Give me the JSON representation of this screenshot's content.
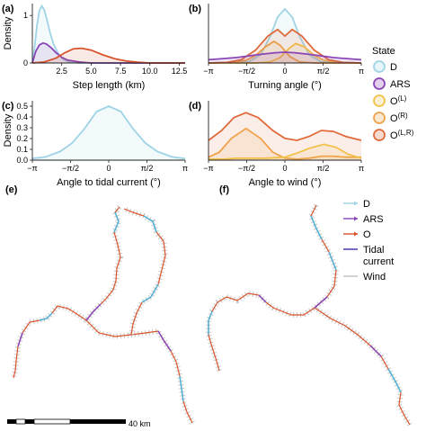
{
  "colors": {
    "D": "#9fd3e6",
    "ARS": "#8a45b8",
    "OL": "#f2c14a",
    "OR": "#f0a24b",
    "OLR": "#e06a3b",
    "O": "#d9532c",
    "tidal": "#3a2da8",
    "wind": "#b5b5b5"
  },
  "state_legend": {
    "title": "State",
    "items": [
      {
        "key": "D",
        "label": "D",
        "sup": ""
      },
      {
        "key": "ARS",
        "label": "ARS",
        "sup": ""
      },
      {
        "key": "OL",
        "label": "O",
        "sup": "(L)"
      },
      {
        "key": "OR",
        "label": "O",
        "sup": "(R)"
      },
      {
        "key": "OLR",
        "label": "O",
        "sup": "(L,R)"
      }
    ]
  },
  "track_legend": {
    "items": [
      {
        "key": "D",
        "label": "D"
      },
      {
        "key": "ARS",
        "label": "ARS"
      },
      {
        "key": "O",
        "label": "O"
      },
      {
        "key": "tidal",
        "label": "Tidal current"
      },
      {
        "key": "wind",
        "label": "Wind"
      }
    ]
  },
  "scalebar": {
    "label": "40 km"
  },
  "chart_data": [
    {
      "id": "a",
      "panel_label": "(a)",
      "type": "area",
      "xlabel": "Step length (km)",
      "ylabel": "Density",
      "xlim": [
        0,
        13
      ],
      "ylim": [
        0,
        1.25
      ],
      "xticks": [
        {
          "v": 2.5,
          "t": "2.5"
        },
        {
          "v": 5,
          "t": "5.0"
        },
        {
          "v": 7.5,
          "t": "7.5"
        },
        {
          "v": 10,
          "t": "10.0"
        },
        {
          "v": 12.5,
          "t": "12.5"
        }
      ],
      "yticks": [
        {
          "v": 0,
          "t": "0"
        },
        {
          "v": 1,
          "t": "1"
        }
      ],
      "series": [
        {
          "key": "D",
          "x": [
            0,
            0.2,
            0.4,
            0.6,
            0.8,
            1.0,
            1.2,
            1.5,
            1.8,
            2.2,
            2.6,
            3.0,
            4.0,
            13
          ],
          "y": [
            0,
            0.35,
            0.8,
            1.1,
            1.2,
            1.12,
            0.95,
            0.65,
            0.4,
            0.2,
            0.08,
            0.03,
            0,
            0
          ]
        },
        {
          "key": "ARS",
          "x": [
            0,
            0.3,
            0.6,
            0.9,
            1.2,
            1.6,
            2.0,
            2.5,
            3.0,
            4.0,
            5.0,
            13
          ],
          "y": [
            0,
            0.25,
            0.38,
            0.42,
            0.4,
            0.32,
            0.22,
            0.12,
            0.06,
            0.02,
            0,
            0
          ]
        },
        {
          "key": "O",
          "x": [
            0,
            1.0,
            2.0,
            2.8,
            3.5,
            4.2,
            5.0,
            6.0,
            7.0,
            8.0,
            9.0,
            10.0,
            13
          ],
          "y": [
            0,
            0.02,
            0.1,
            0.22,
            0.3,
            0.31,
            0.27,
            0.17,
            0.09,
            0.04,
            0.015,
            0,
            0
          ]
        }
      ]
    },
    {
      "id": "b",
      "panel_label": "(b)",
      "type": "area",
      "xlabel": "Turning angle (°)",
      "ylabel": "",
      "xlim": [
        -3.1416,
        3.1416
      ],
      "ylim": [
        0,
        1.1
      ],
      "xticks": [
        {
          "v": -3.1416,
          "t": "−π"
        },
        {
          "v": -1.5708,
          "t": "−π/2"
        },
        {
          "v": 0,
          "t": "0"
        },
        {
          "v": 1.5708,
          "t": "π/2"
        },
        {
          "v": 3.1416,
          "t": "π"
        }
      ],
      "yticks": [],
      "series": [
        {
          "key": "D",
          "x": [
            -3.14,
            -1.5,
            -1.0,
            -0.6,
            -0.3,
            0,
            0.3,
            0.6,
            1.0,
            1.5,
            3.14
          ],
          "y": [
            0,
            0.02,
            0.15,
            0.5,
            0.85,
            1.0,
            0.85,
            0.5,
            0.15,
            0.02,
            0
          ]
        },
        {
          "key": "OL",
          "x": [
            -3.14,
            -1.2,
            -0.6,
            -0.2,
            0.2,
            0.45,
            0.8,
            1.2,
            1.6,
            2.2,
            3.14
          ],
          "y": [
            0,
            0,
            0.02,
            0.1,
            0.28,
            0.36,
            0.3,
            0.14,
            0.05,
            0.01,
            0
          ]
        },
        {
          "key": "OR",
          "x": [
            -3.14,
            -2.2,
            -1.6,
            -1.2,
            -0.8,
            -0.45,
            -0.2,
            0.2,
            0.6,
            1.2,
            3.14
          ],
          "y": [
            0,
            0.01,
            0.05,
            0.14,
            0.3,
            0.4,
            0.33,
            0.12,
            0.02,
            0,
            0
          ]
        },
        {
          "key": "OLR",
          "x": [
            -3.14,
            -2.4,
            -1.8,
            -1.2,
            -0.7,
            -0.3,
            0,
            0.3,
            0.7,
            1.2,
            1.8,
            2.4,
            3.14
          ],
          "y": [
            0,
            0.01,
            0.06,
            0.24,
            0.5,
            0.62,
            0.5,
            0.62,
            0.5,
            0.24,
            0.06,
            0.01,
            0
          ]
        },
        {
          "key": "ARS",
          "x": [
            -3.14,
            -2.0,
            -1.0,
            -0.4,
            0,
            0.4,
            1.0,
            2.0,
            3.14
          ],
          "y": [
            0.06,
            0.1,
            0.16,
            0.19,
            0.2,
            0.19,
            0.16,
            0.1,
            0.06
          ]
        }
      ]
    },
    {
      "id": "c",
      "panel_label": "(c)",
      "type": "area",
      "xlabel": "Angle to tidal current (°)",
      "ylabel": "Density",
      "xlim": [
        -3.1416,
        3.1416
      ],
      "ylim": [
        0,
        0.55
      ],
      "xticks": [
        {
          "v": -3.1416,
          "t": "−π"
        },
        {
          "v": -1.5708,
          "t": "−π/2"
        },
        {
          "v": 0,
          "t": "0"
        },
        {
          "v": 1.5708,
          "t": "π/2"
        },
        {
          "v": 3.1416,
          "t": "π"
        }
      ],
      "yticks": [
        {
          "v": 0,
          "t": "0.0"
        },
        {
          "v": 0.1,
          "t": "0.1"
        },
        {
          "v": 0.2,
          "t": "0.2"
        },
        {
          "v": 0.3,
          "t": "0.3"
        },
        {
          "v": 0.4,
          "t": "0.4"
        },
        {
          "v": 0.5,
          "t": "0.5"
        }
      ],
      "series": [
        {
          "key": "D",
          "x": [
            -3.14,
            -2.6,
            -2.0,
            -1.5,
            -1.0,
            -0.5,
            0,
            0.5,
            1.0,
            1.5,
            2.0,
            2.6,
            3.14
          ],
          "y": [
            0.015,
            0.03,
            0.08,
            0.16,
            0.29,
            0.45,
            0.5,
            0.45,
            0.29,
            0.16,
            0.08,
            0.03,
            0.015
          ]
        }
      ]
    },
    {
      "id": "d",
      "panel_label": "(d)",
      "type": "area",
      "xlabel": "Angle to wind (°)",
      "ylabel": "",
      "xlim": [
        -3.1416,
        3.1416
      ],
      "ylim": [
        0,
        0.6
      ],
      "xticks": [
        {
          "v": -3.1416,
          "t": "−π"
        },
        {
          "v": -1.5708,
          "t": "−π/2"
        },
        {
          "v": 0,
          "t": "0"
        },
        {
          "v": 1.5708,
          "t": "π/2"
        },
        {
          "v": 3.1416,
          "t": "π"
        }
      ],
      "yticks": [],
      "series": [
        {
          "key": "OLR",
          "x": [
            -3.14,
            -2.6,
            -2.1,
            -1.6,
            -1.1,
            -0.5,
            0,
            0.5,
            1.0,
            1.5,
            2.0,
            2.5,
            3.14
          ],
          "y": [
            0.2,
            0.3,
            0.43,
            0.48,
            0.43,
            0.3,
            0.22,
            0.2,
            0.24,
            0.3,
            0.29,
            0.24,
            0.2
          ]
        },
        {
          "key": "OR",
          "x": [
            -3.14,
            -2.7,
            -2.2,
            -1.6,
            -1.0,
            -0.5,
            0,
            0.5,
            1.0,
            1.5,
            2.0,
            2.5,
            3.14
          ],
          "y": [
            0.03,
            0.08,
            0.22,
            0.32,
            0.22,
            0.08,
            0.02,
            0.01,
            0.02,
            0.04,
            0.04,
            0.03,
            0.03
          ]
        },
        {
          "key": "OL",
          "x": [
            -3.14,
            -2.5,
            -2.0,
            -1.5,
            -0.8,
            0,
            0.6,
            1.0,
            1.6,
            2.1,
            2.6,
            3.14
          ],
          "y": [
            0.01,
            0.01,
            0.02,
            0.02,
            0.02,
            0.03,
            0.08,
            0.12,
            0.16,
            0.13,
            0.06,
            0.02
          ]
        }
      ]
    }
  ]
}
